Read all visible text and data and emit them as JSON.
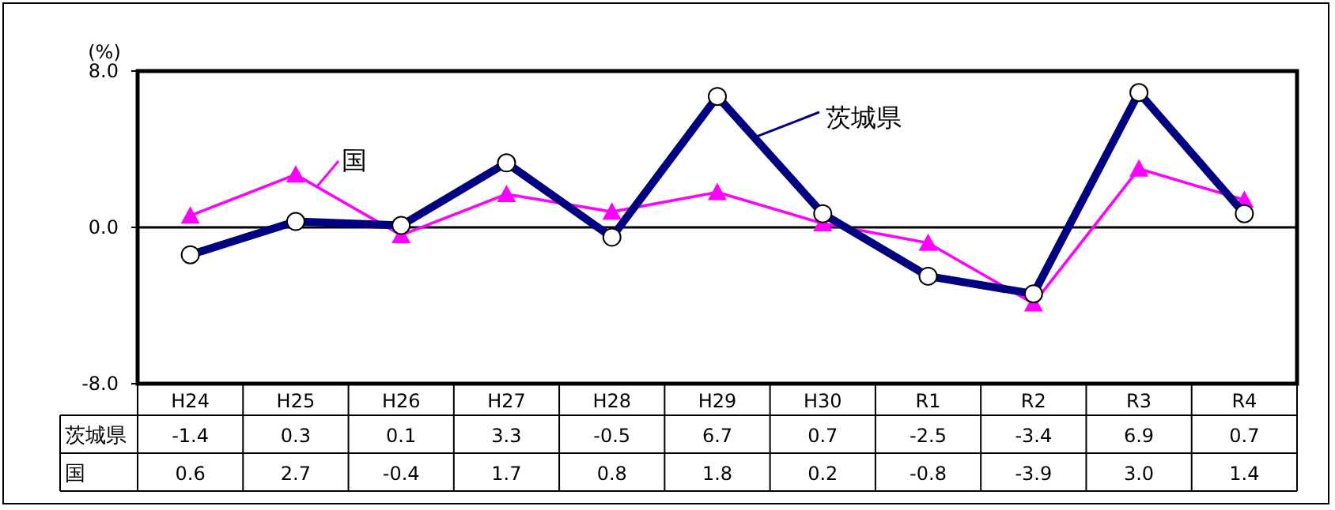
{
  "chart_data": {
    "type": "line",
    "ylabel": "(%)",
    "categories": [
      "H24",
      "H25",
      "H26",
      "H27",
      "H28",
      "H29",
      "H30",
      "R1",
      "R2",
      "R3",
      "R4"
    ],
    "series": [
      {
        "name": "茨城県",
        "color": "#000080",
        "marker": "circle",
        "values": [
          -1.4,
          0.3,
          0.1,
          3.3,
          -0.5,
          6.7,
          0.7,
          -2.5,
          -3.4,
          6.9,
          0.7
        ],
        "value_labels": [
          "-1.4",
          "0.3",
          "0.1",
          "3.3",
          "-0.5",
          "6.7",
          "0.7",
          "-2.5",
          "-3.4",
          "6.9",
          "0.7"
        ]
      },
      {
        "name": "国",
        "color": "#ff00ff",
        "marker": "triangle",
        "values": [
          0.6,
          2.7,
          -0.4,
          1.7,
          0.8,
          1.8,
          0.2,
          -0.8,
          -3.9,
          3.0,
          1.4
        ],
        "value_labels": [
          "0.6",
          "2.7",
          "-0.4",
          "1.7",
          "0.8",
          "1.8",
          "0.2",
          "-0.8",
          "-3.9",
          "3.0",
          "1.4"
        ]
      }
    ],
    "ylim": [
      -8,
      8
    ],
    "yticks": [
      {
        "value": 8,
        "label": "8.0"
      },
      {
        "value": 0,
        "label": "0.0"
      },
      {
        "value": -8,
        "label": "-8.0"
      }
    ],
    "ref_lines": [
      {
        "axis": "y",
        "value": 0,
        "color": "#000000"
      }
    ],
    "legend": "top"
  }
}
